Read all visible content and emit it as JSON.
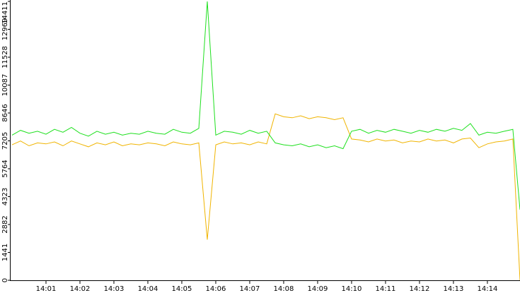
{
  "chart_data": {
    "type": "line",
    "x": [
      0,
      0.25,
      0.5,
      0.75,
      1,
      1.25,
      1.5,
      1.75,
      2,
      2.25,
      2.5,
      2.75,
      3,
      3.25,
      3.5,
      3.75,
      4,
      4.25,
      4.5,
      4.75,
      5,
      5.25,
      5.5,
      5.75,
      6,
      6.25,
      6.5,
      6.75,
      7,
      7.25,
      7.5,
      7.75,
      8,
      8.25,
      8.5,
      8.75,
      9,
      9.25,
      9.5,
      9.75,
      10,
      10.25,
      10.5,
      10.75,
      11,
      11.25,
      11.5,
      11.75,
      12,
      12.25,
      12.5,
      12.75,
      13,
      13.25,
      13.5,
      13.75,
      14,
      14.25,
      14.5,
      14.75,
      14.96
    ],
    "series": [
      {
        "color": "#f0b400",
        "values": [
          7000,
          7200,
          6950,
          7100,
          7050,
          7150,
          6950,
          7200,
          7050,
          6900,
          7100,
          7000,
          7150,
          6950,
          7050,
          7000,
          7100,
          7050,
          6950,
          7150,
          7050,
          7000,
          7100,
          2100,
          7000,
          7150,
          7050,
          7100,
          7000,
          7150,
          7050,
          8600,
          8450,
          8400,
          8500,
          8350,
          8450,
          8400,
          8300,
          8400,
          7300,
          7250,
          7150,
          7300,
          7200,
          7250,
          7100,
          7200,
          7150,
          7300,
          7200,
          7250,
          7100,
          7300,
          7350,
          6850,
          7050,
          7150,
          7200,
          7300,
          0
        ]
      },
      {
        "color": "#1ee01e",
        "values": [
          7500,
          7750,
          7600,
          7700,
          7550,
          7800,
          7650,
          7900,
          7600,
          7450,
          7700,
          7550,
          7650,
          7500,
          7600,
          7550,
          7700,
          7600,
          7550,
          7800,
          7650,
          7600,
          7850,
          14411,
          7500,
          7700,
          7650,
          7550,
          7750,
          7600,
          7700,
          7100,
          7000,
          6950,
          7050,
          6900,
          7000,
          6850,
          6950,
          6800,
          7700,
          7800,
          7600,
          7750,
          7650,
          7800,
          7700,
          7600,
          7750,
          7650,
          7800,
          7700,
          7850,
          7750,
          8100,
          7500,
          7650,
          7600,
          7700,
          7800,
          3650
        ]
      }
    ],
    "xlim": [
      0,
      14.96
    ],
    "xticks": [
      {
        "value": 1,
        "label": "14:01"
      },
      {
        "value": 2,
        "label": "14:02"
      },
      {
        "value": 3,
        "label": "14:03"
      },
      {
        "value": 4,
        "label": "14:04"
      },
      {
        "value": 5,
        "label": "14:05"
      },
      {
        "value": 6,
        "label": "14:06"
      },
      {
        "value": 7,
        "label": "14:07"
      },
      {
        "value": 8,
        "label": "14:08"
      },
      {
        "value": 9,
        "label": "14:09"
      },
      {
        "value": 10,
        "label": "14:10"
      },
      {
        "value": 11,
        "label": "14:11"
      },
      {
        "value": 12,
        "label": "14:12"
      },
      {
        "value": 13,
        "label": "14:13"
      },
      {
        "value": 14,
        "label": "14:14"
      }
    ],
    "ylim": [
      0,
      14411
    ],
    "yticks": [
      0,
      1441,
      2882,
      4323,
      5764,
      7205,
      8646,
      10087,
      11528,
      12969,
      14411
    ]
  }
}
